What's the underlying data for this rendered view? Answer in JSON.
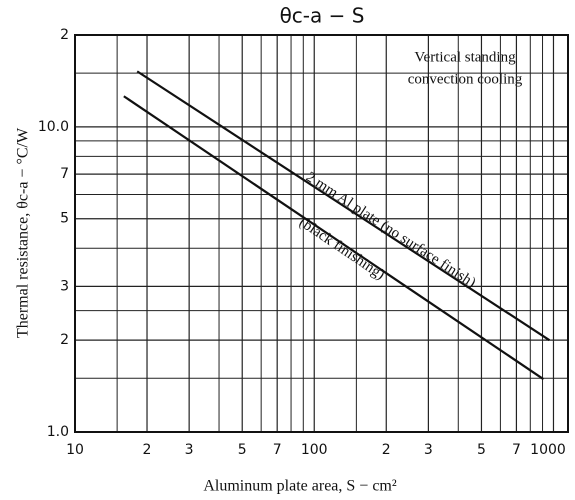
{
  "chart_data": {
    "type": "line",
    "title": "θc-a  −  S",
    "xlabel": "Aluminum plate area, S − cm²",
    "ylabel": "Thermal resistance, θc-a − °C/W",
    "annotation": [
      "Vertical standing",
      "convection cooling"
    ],
    "log_x": true,
    "log_y": true,
    "grid": true,
    "xlim": [
      10,
      1150
    ],
    "ylim": [
      1,
      20
    ],
    "xticks": [
      10,
      {
        "value": 20,
        "label": "2"
      },
      {
        "value": 30,
        "label": "3"
      },
      {
        "value": 50,
        "label": "5"
      },
      {
        "value": 70,
        "label": "7"
      },
      100,
      {
        "value": 200,
        "label": "2"
      },
      {
        "value": 300,
        "label": "3"
      },
      {
        "value": 500,
        "label": "5"
      },
      {
        "value": 700,
        "label": "7"
      },
      1000
    ],
    "x_minor_grid": [
      15,
      40,
      60,
      80,
      90,
      150,
      400,
      600,
      800,
      900
    ],
    "yticks": [
      {
        "value": 1,
        "label": "1.0"
      },
      2,
      3,
      5,
      7,
      {
        "value": 10,
        "label": "10.0"
      },
      {
        "value": 20,
        "label": "2"
      }
    ],
    "y_minor_grid": [
      1.5,
      2.5,
      4,
      6,
      8,
      9,
      15
    ],
    "series": [
      {
        "name": "2 mm Al plate (no surface finish)",
        "color": "#111111",
        "x": [
          18.2,
          962
        ],
        "values": [
          15.2,
          2.0
        ]
      },
      {
        "name": "(black finishing)",
        "color": "#111111",
        "x": [
          16.0,
          908
        ],
        "values": [
          12.6,
          1.49
        ]
      }
    ]
  }
}
